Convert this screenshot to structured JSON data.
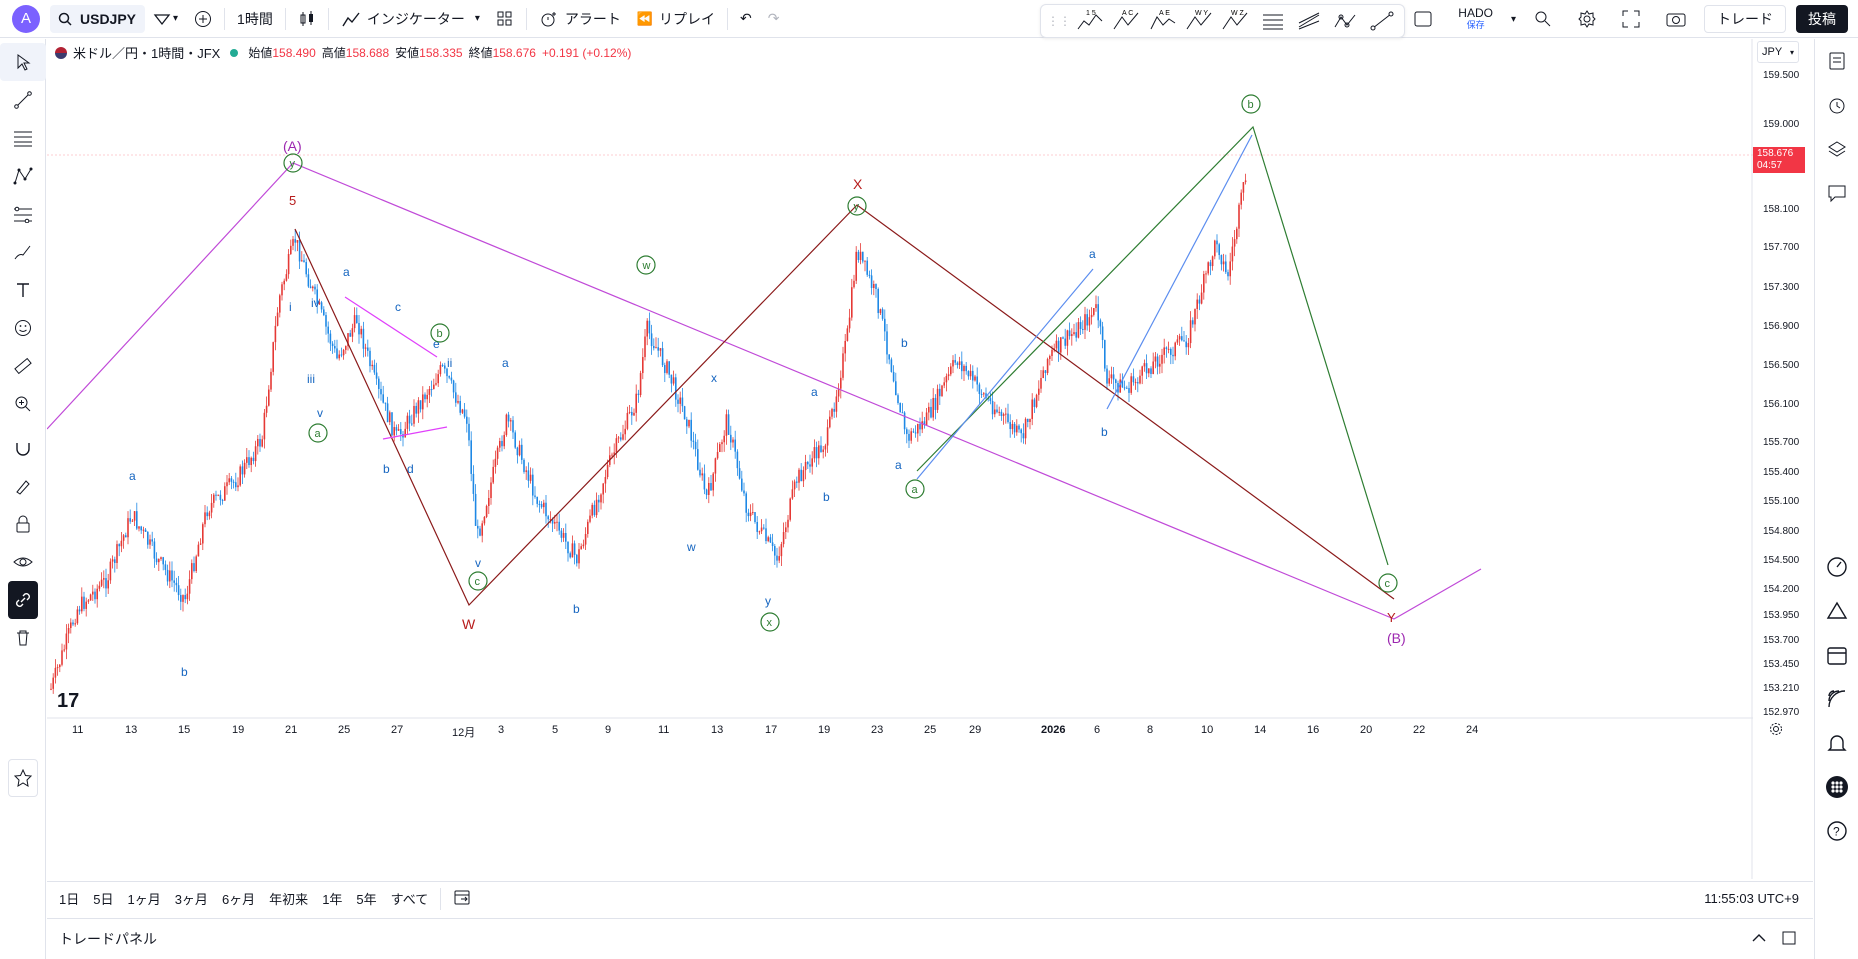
{
  "header": {
    "avatar_letter": "A",
    "symbol": "USDJPY",
    "interval": "1時間",
    "indicators_label": "インジケーター",
    "alert_label": "アラート",
    "replay_label": "リプレイ",
    "layout_name": "HADO",
    "layout_saved": "保存",
    "trade_label": "トレード",
    "publish_label": "投稿"
  },
  "draw_toolbar": {
    "tools": [
      "1 5",
      "A C",
      "A E",
      "W Y",
      "W Z",
      "",
      "",
      "",
      ""
    ]
  },
  "legend": {
    "title": "米ドル／円・1時間・JFX",
    "open_label": "始値",
    "open": "158.490",
    "high_label": "高値",
    "high": "158.688",
    "low_label": "安値",
    "low": "158.335",
    "close_label": "終値",
    "close": "158.676",
    "change": "+0.191 (+0.12%)"
  },
  "price_scale": {
    "currency": "JPY",
    "ticks": [
      "159.500",
      "159.000",
      "158.100",
      "157.700",
      "157.300",
      "156.900",
      "156.500",
      "156.100",
      "155.700",
      "155.400",
      "155.100",
      "154.800",
      "154.500",
      "154.200",
      "153.950",
      "153.700",
      "153.450",
      "153.210",
      "152.970"
    ],
    "current_price": "158.676",
    "countdown": "04:57"
  },
  "time_scale": {
    "ticks": [
      "11",
      "13",
      "15",
      "19",
      "21",
      "25",
      "27",
      "12月",
      "3",
      "5",
      "9",
      "11",
      "13",
      "17",
      "19",
      "23",
      "25",
      "29",
      "2026",
      "6",
      "8",
      "10",
      "14",
      "16",
      "20",
      "22",
      "24"
    ]
  },
  "wave_labels": [
    {
      "text": "(A)",
      "color": "#9c27b0"
    },
    {
      "text": "(B)",
      "color": "#9c27b0"
    },
    {
      "text": "W",
      "color": "#b71c1c"
    },
    {
      "text": "X",
      "color": "#b71c1c"
    },
    {
      "text": "Y",
      "color": "#b71c1c"
    },
    {
      "text": "5",
      "color": "#b71c1c"
    },
    {
      "text": "a",
      "color": "#1565c0"
    },
    {
      "text": "b",
      "color": "#1565c0"
    },
    {
      "text": "c",
      "color": "#1565c0"
    },
    {
      "text": "d",
      "color": "#1565c0"
    },
    {
      "text": "e",
      "color": "#1565c0"
    },
    {
      "text": "i",
      "color": "#1565c0"
    },
    {
      "text": "ii",
      "color": "#1565c0"
    },
    {
      "text": "iii",
      "color": "#1565c0"
    },
    {
      "text": "iv",
      "color": "#1565c0"
    },
    {
      "text": "v",
      "color": "#1565c0"
    },
    {
      "text": "w",
      "color": "#1565c0"
    },
    {
      "text": "x",
      "color": "#1565c0"
    },
    {
      "text": "y",
      "color": "#1565c0"
    }
  ],
  "circled_labels": [
    "a",
    "b",
    "c",
    "w",
    "x",
    "y"
  ],
  "bottom": {
    "ranges": [
      "1日",
      "5日",
      "1ヶ月",
      "3ヶ月",
      "6ヶ月",
      "年初来",
      "1年",
      "5年",
      "すべて"
    ],
    "clock": "11:55:03 UTC+9"
  },
  "panel": {
    "label": "トレードパネル"
  },
  "colors": {
    "up": "#e53935",
    "down": "#1e88e5",
    "purple_line": "#c04ad8",
    "brown_line": "#8b1a1a",
    "green_line": "#2e7d32",
    "price_tag": "#f23645"
  }
}
